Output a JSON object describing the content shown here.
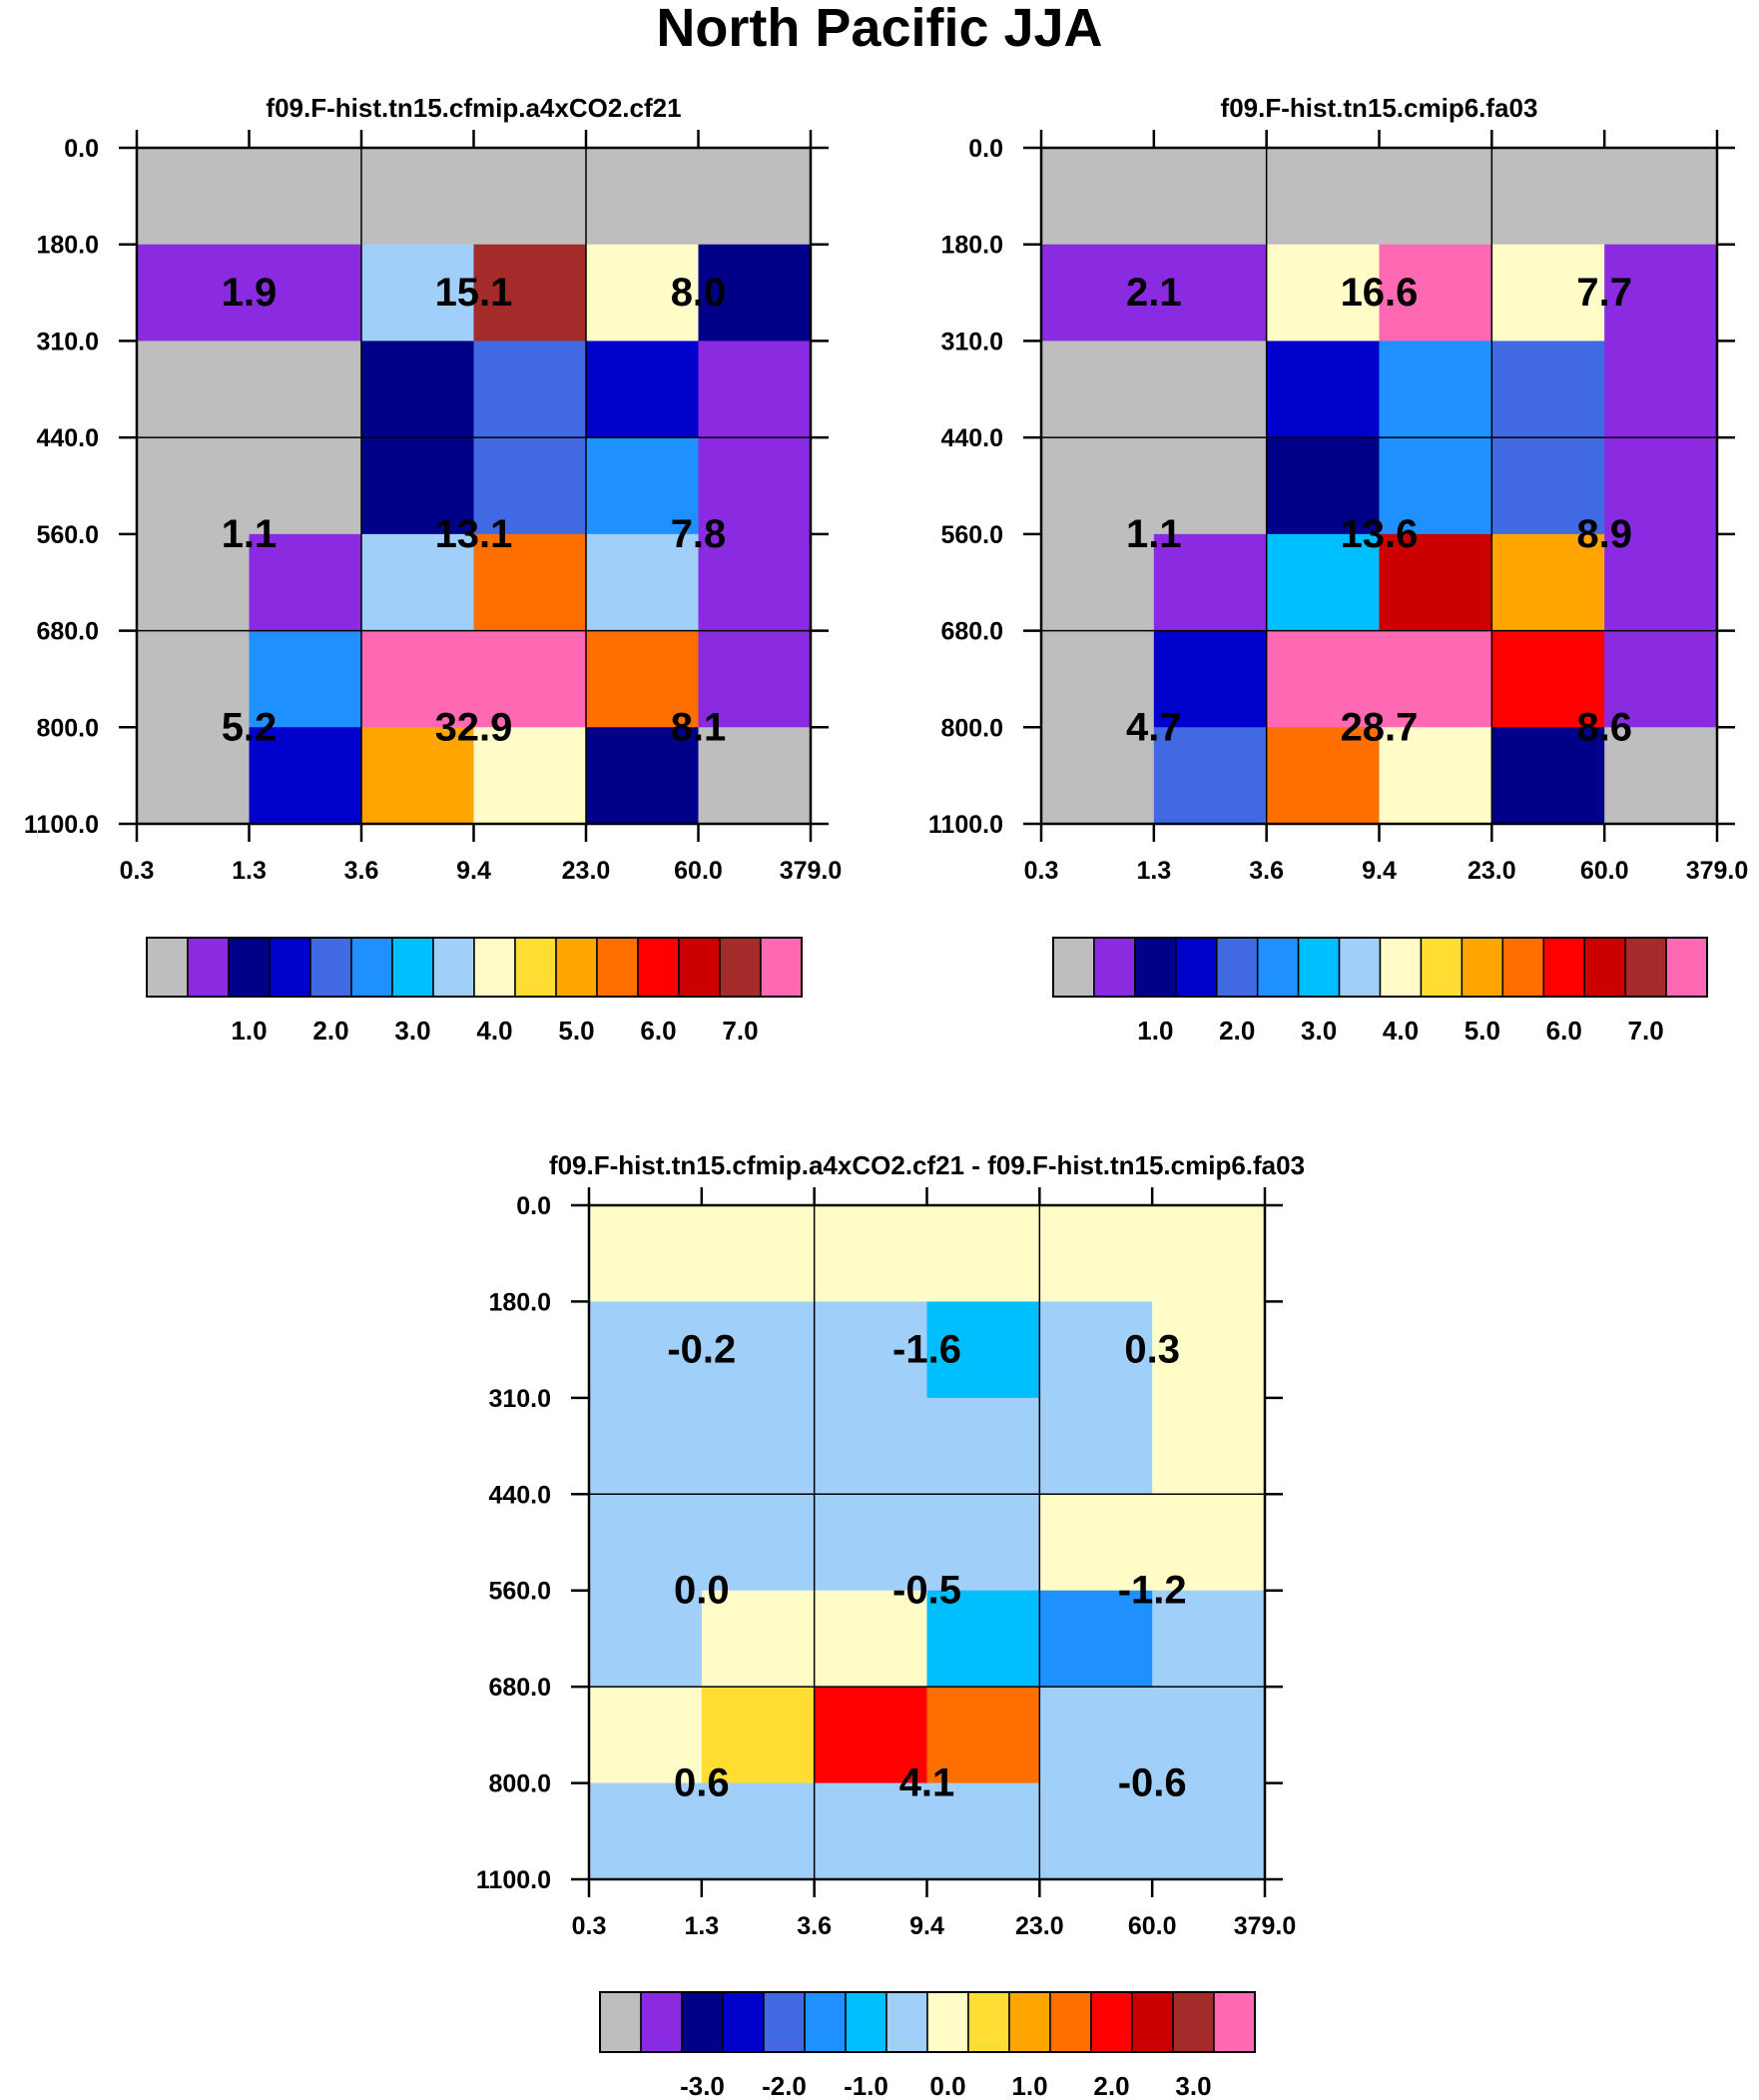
{
  "page": {
    "title": "North Pacific JJA"
  },
  "chart_data": [
    {
      "type": "heatmap",
      "title": "f09.F-hist.tn15.cfmip.a4xCO2.cf21",
      "xlabel": "",
      "ylabel": "",
      "x_tick_labels": [
        "0.3",
        "1.3",
        "3.6",
        "9.4",
        "23.0",
        "60.0",
        "379.0"
      ],
      "y_tick_labels": [
        "0.0",
        "180.0",
        "310.0",
        "440.0",
        "560.0",
        "680.0",
        "800.0",
        "1100.0"
      ],
      "y_axis_inverted": true,
      "cells": [
        [
          "#bebebe",
          "#bebebe",
          "#bebebe",
          "#bebebe",
          "#bebebe",
          "#bebebe"
        ],
        [
          "#8a2be2",
          "#8a2be2",
          "#a0cffa",
          "#a52a2a",
          "#fffcc8",
          "#000088"
        ],
        [
          "#bebebe",
          "#bebebe",
          "#000088",
          "#4169e1",
          "#0000cd",
          "#8a2be2"
        ],
        [
          "#bebebe",
          "#bebebe",
          "#000088",
          "#4169e1",
          "#1e90ff",
          "#8a2be2"
        ],
        [
          "#bebebe",
          "#8a2be2",
          "#a0cffa",
          "#ff6f00",
          "#a0cffa",
          "#8a2be2"
        ],
        [
          "#bebebe",
          "#1e90ff",
          "#ff69b4",
          "#ff69b4",
          "#ff6f00",
          "#8a2be2"
        ],
        [
          "#bebebe",
          "#0000cd",
          "#ffa500",
          "#fffcc8",
          "#000088",
          "#bebebe"
        ]
      ],
      "box_labels": [
        {
          "col": 0,
          "row": 0,
          "text": "1.9"
        },
        {
          "col": 1,
          "row": 0,
          "text": "15.1"
        },
        {
          "col": 2,
          "row": 0,
          "text": "8.0"
        },
        {
          "col": 0,
          "row": 1,
          "text": "1.1"
        },
        {
          "col": 1,
          "row": 1,
          "text": "13.1"
        },
        {
          "col": 2,
          "row": 1,
          "text": "7.8"
        },
        {
          "col": 0,
          "row": 2,
          "text": "5.2"
        },
        {
          "col": 1,
          "row": 2,
          "text": "32.9"
        },
        {
          "col": 2,
          "row": 2,
          "text": "8.1"
        }
      ],
      "colorbar": {
        "colors": [
          "#bebebe",
          "#8a2be2",
          "#000088",
          "#0000cd",
          "#4169e1",
          "#1e90ff",
          "#00bfff",
          "#a0cffa",
          "#fffcc8",
          "#ffdd33",
          "#ffa500",
          "#ff6f00",
          "#ff0000",
          "#cd0000",
          "#a52a2a",
          "#ff69b4"
        ],
        "labels": [
          "1.0",
          "2.0",
          "3.0",
          "4.0",
          "5.0",
          "6.0",
          "7.0"
        ]
      }
    },
    {
      "type": "heatmap",
      "title": "f09.F-hist.tn15.cmip6.fa03",
      "xlabel": "",
      "ylabel": "",
      "x_tick_labels": [
        "0.3",
        "1.3",
        "3.6",
        "9.4",
        "23.0",
        "60.0",
        "379.0"
      ],
      "y_tick_labels": [
        "0.0",
        "180.0",
        "310.0",
        "440.0",
        "560.0",
        "680.0",
        "800.0",
        "1100.0"
      ],
      "y_axis_inverted": true,
      "cells": [
        [
          "#bebebe",
          "#bebebe",
          "#bebebe",
          "#bebebe",
          "#bebebe",
          "#bebebe"
        ],
        [
          "#8a2be2",
          "#8a2be2",
          "#fffcc8",
          "#ff69b4",
          "#fffcc8",
          "#8a2be2"
        ],
        [
          "#bebebe",
          "#bebebe",
          "#0000cd",
          "#1e90ff",
          "#4169e1",
          "#8a2be2"
        ],
        [
          "#bebebe",
          "#bebebe",
          "#000088",
          "#1e90ff",
          "#4169e1",
          "#8a2be2"
        ],
        [
          "#bebebe",
          "#8a2be2",
          "#00bfff",
          "#cd0000",
          "#ffa500",
          "#8a2be2"
        ],
        [
          "#bebebe",
          "#0000cd",
          "#ff69b4",
          "#ff69b4",
          "#ff0000",
          "#8a2be2"
        ],
        [
          "#bebebe",
          "#4169e1",
          "#ff6f00",
          "#fffcc8",
          "#000088",
          "#bebebe"
        ]
      ],
      "box_labels": [
        {
          "col": 0,
          "row": 0,
          "text": "2.1"
        },
        {
          "col": 1,
          "row": 0,
          "text": "16.6"
        },
        {
          "col": 2,
          "row": 0,
          "text": "7.7"
        },
        {
          "col": 0,
          "row": 1,
          "text": "1.1"
        },
        {
          "col": 1,
          "row": 1,
          "text": "13.6"
        },
        {
          "col": 2,
          "row": 1,
          "text": "8.9"
        },
        {
          "col": 0,
          "row": 2,
          "text": "4.7"
        },
        {
          "col": 1,
          "row": 2,
          "text": "28.7"
        },
        {
          "col": 2,
          "row": 2,
          "text": "8.6"
        }
      ],
      "colorbar": {
        "colors": [
          "#bebebe",
          "#8a2be2",
          "#000088",
          "#0000cd",
          "#4169e1",
          "#1e90ff",
          "#00bfff",
          "#a0cffa",
          "#fffcc8",
          "#ffdd33",
          "#ffa500",
          "#ff6f00",
          "#ff0000",
          "#cd0000",
          "#a52a2a",
          "#ff69b4"
        ],
        "labels": [
          "1.0",
          "2.0",
          "3.0",
          "4.0",
          "5.0",
          "6.0",
          "7.0"
        ]
      }
    },
    {
      "type": "heatmap",
      "title": "f09.F-hist.tn15.cfmip.a4xCO2.cf21 - f09.F-hist.tn15.cmip6.fa03",
      "xlabel": "",
      "ylabel": "",
      "x_tick_labels": [
        "0.3",
        "1.3",
        "3.6",
        "9.4",
        "23.0",
        "60.0",
        "379.0"
      ],
      "y_tick_labels": [
        "0.0",
        "180.0",
        "310.0",
        "440.0",
        "560.0",
        "680.0",
        "800.0",
        "1100.0"
      ],
      "y_axis_inverted": true,
      "cells": [
        [
          "#fffcc8",
          "#fffcc8",
          "#fffcc8",
          "#fffcc8",
          "#fffcc8",
          "#fffcc8"
        ],
        [
          "#a0cffa",
          "#a0cffa",
          "#a0cffa",
          "#00bfff",
          "#a0cffa",
          "#fffcc8"
        ],
        [
          "#a0cffa",
          "#a0cffa",
          "#a0cffa",
          "#a0cffa",
          "#a0cffa",
          "#fffcc8"
        ],
        [
          "#a0cffa",
          "#a0cffa",
          "#a0cffa",
          "#a0cffa",
          "#fffcc8",
          "#fffcc8"
        ],
        [
          "#a0cffa",
          "#fffcc8",
          "#fffcc8",
          "#00bfff",
          "#1e90ff",
          "#a0cffa"
        ],
        [
          "#fffcc8",
          "#ffdd33",
          "#ff0000",
          "#ff6f00",
          "#a0cffa",
          "#a0cffa"
        ],
        [
          "#a0cffa",
          "#a0cffa",
          "#a0cffa",
          "#a0cffa",
          "#a0cffa",
          "#a0cffa"
        ]
      ],
      "box_labels": [
        {
          "col": 0,
          "row": 0,
          "text": "-0.2"
        },
        {
          "col": 1,
          "row": 0,
          "text": "-1.6"
        },
        {
          "col": 2,
          "row": 0,
          "text": "0.3"
        },
        {
          "col": 0,
          "row": 1,
          "text": "0.0"
        },
        {
          "col": 1,
          "row": 1,
          "text": "-0.5"
        },
        {
          "col": 2,
          "row": 1,
          "text": "-1.2"
        },
        {
          "col": 0,
          "row": 2,
          "text": "0.6"
        },
        {
          "col": 1,
          "row": 2,
          "text": "4.1"
        },
        {
          "col": 2,
          "row": 2,
          "text": "-0.6"
        }
      ],
      "colorbar": {
        "colors": [
          "#bebebe",
          "#8a2be2",
          "#000088",
          "#0000cd",
          "#4169e1",
          "#1e90ff",
          "#00bfff",
          "#a0cffa",
          "#fffcc8",
          "#ffdd33",
          "#ffa500",
          "#ff6f00",
          "#ff0000",
          "#cd0000",
          "#a52a2a",
          "#ff69b4"
        ],
        "labels": [
          "-3.0",
          "-2.0",
          "-1.0",
          "0.0",
          "1.0",
          "2.0",
          "3.0"
        ]
      }
    }
  ]
}
